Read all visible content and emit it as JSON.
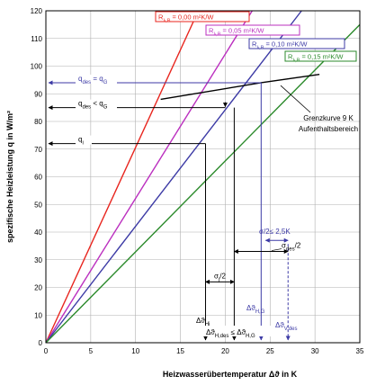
{
  "chart_data": {
    "type": "line",
    "xlabel": "Heizwasserübertemperatur  Δϑ in K",
    "ylabel": "spezifische Heizleistung q in W/m²",
    "xlim": [
      0,
      35
    ],
    "ylim": [
      0,
      120
    ],
    "xticks": [
      0,
      5,
      10,
      15,
      20,
      25,
      30,
      35
    ],
    "yticks": [
      0,
      10,
      20,
      30,
      40,
      50,
      60,
      70,
      80,
      90,
      100,
      110,
      120
    ],
    "grid": true,
    "series": [
      {
        "name": "R λ,B = 0,00 m²K/W",
        "color": "#e8251e",
        "x": [
          0,
          17.0
        ],
        "y": [
          0,
          120
        ]
      },
      {
        "name": "R λ,B = 0,05 m²K/W",
        "color": "#bb2fbf",
        "x": [
          0,
          23.0
        ],
        "y": [
          0,
          120
        ]
      },
      {
        "name": "R λ,B = 0,10 m²K/W",
        "color": "#3c3aa5",
        "x": [
          0,
          28.5
        ],
        "y": [
          0,
          120
        ]
      },
      {
        "name": "R λ,B = 0,15 m²K/W",
        "color": "#2b8a2b",
        "x": [
          0,
          35.0
        ],
        "y": [
          0,
          115
        ]
      }
    ],
    "limit_curve": {
      "label_line1": "Grenzkurve 9 K",
      "label_line2": "Aufenthaltsbereich",
      "x": [
        12.8,
        24.0,
        30.5
      ],
      "y": [
        88,
        94,
        97
      ]
    },
    "markers": {
      "q_des_eq": {
        "label": "q des = q G",
        "y": 94,
        "x_to": 24.0
      },
      "q_des_lt": {
        "label": "q des < q G",
        "y": 85,
        "x_to": 20.0
      },
      "q_i": {
        "label": "q i",
        "y": 72,
        "x_to": 17.8
      },
      "sigma_half_le": {
        "label": "σ/2 ≤ 2,5K",
        "y": 37,
        "x1": 24.5,
        "x2": 27.0
      },
      "sigma_des_half": {
        "label": "σ des /2",
        "y": 33,
        "x1": 21.0,
        "x2": 27.0
      },
      "sigma_j_half": {
        "label": "σ j /2",
        "y": 22,
        "x1": 17.8,
        "x2": 21.0
      },
      "dtheta_Hj": {
        "label": "Δϑ Hj",
        "x": 17.8
      },
      "dtheta_HG": {
        "label": "Δϑ H,G",
        "x": 24.0
      },
      "dtheta_Vdes": {
        "label": "Δϑ V,des",
        "x": 27.0
      },
      "dtheta_Hdes": {
        "label": "Δϑ H,des ≤ Δϑ H,G",
        "x": 21.0
      }
    }
  }
}
